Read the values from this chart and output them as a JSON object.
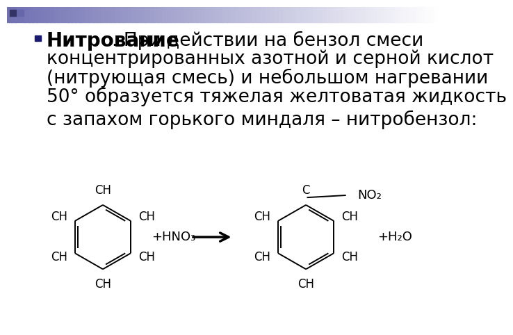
{
  "bg_color": "#ffffff",
  "text_color": "#000000",
  "bullet_color": "#1a1a6e",
  "font_size_title": 20,
  "font_size_body": 19,
  "font_size_chem": 12,
  "font_size_label": 13,
  "title_bold": "Нитрование",
  "line1": ". При действии на бензол смеси",
  "line2": "концентрированных азотной и серной кислот",
  "line3": "(нитрующая смесь) и небольшом нагревании",
  "line4": "50° образуется тяжелая желтоватая жидкость",
  "line5": "с запахом горького миндаля – нитробензол:",
  "hno3_label": "+HNO₃",
  "h2o_label": "+H₂O",
  "no2_label": "NO₂",
  "header_left_color": "#7070b0",
  "header_right_color": "#e8e8f5"
}
